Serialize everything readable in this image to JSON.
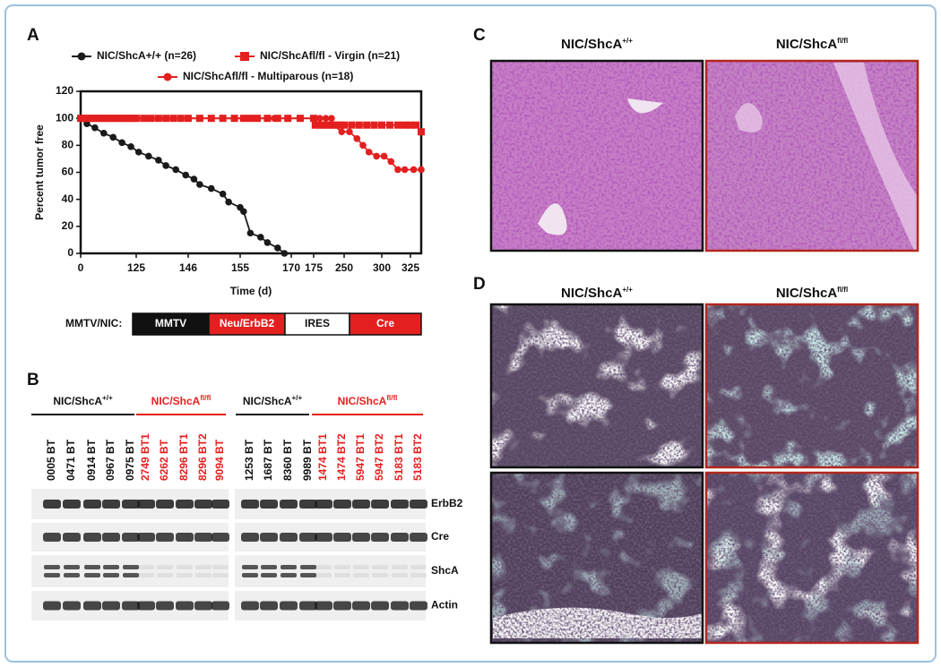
{
  "panel_labels": [
    "A",
    "B",
    "C",
    "D"
  ],
  "chart_data": {
    "type": "line",
    "y_label": "Percent tumor free",
    "x_label": "Time (d)",
    "xlim": [
      0,
      335
    ],
    "xticks": [
      0,
      125,
      146,
      155,
      170,
      175,
      250,
      300,
      325
    ],
    "ylim": [
      0,
      120
    ],
    "yticks": [
      0,
      20,
      40,
      60,
      80,
      100,
      120
    ],
    "series": [
      {
        "name": "NIC/ShcA+/+ (n=26)",
        "color": "#1a1a1a",
        "marker": "circle",
        "x": [
          0,
          14,
          32,
          52,
          73,
          93,
          113,
          126,
          130,
          134,
          137,
          141,
          145,
          147,
          148,
          150,
          152,
          153,
          155,
          156,
          158,
          161,
          163,
          166,
          168
        ],
        "values": [
          100,
          96,
          93,
          89,
          86,
          82,
          79,
          75,
          72,
          69,
          65,
          62,
          58,
          55,
          51,
          48,
          44,
          38,
          34,
          31,
          15,
          12,
          8,
          4,
          0
        ]
      },
      {
        "name": "NIC/ShcAfl/fl - Multiparous (n=18)",
        "color": "#e41f1f",
        "marker": "circle",
        "x": [
          0,
          50,
          100,
          130,
          150,
          165,
          175,
          190,
          205,
          219,
          224,
          244,
          257,
          267,
          275,
          283,
          293,
          302,
          308,
          314,
          320,
          328,
          335
        ],
        "values": [
          100,
          100,
          100,
          100,
          100,
          100,
          100,
          100,
          100,
          100,
          95,
          90,
          90,
          85,
          80,
          75,
          72,
          72,
          68,
          62,
          62,
          62,
          62
        ]
      },
      {
        "name": "NIC/ShcAfl/fl - Virgin (n=21)",
        "color": "#e41f1f",
        "marker": "square",
        "x": [
          0,
          8,
          16,
          24,
          32,
          40,
          48,
          56,
          64,
          72,
          80,
          88,
          96,
          104,
          112,
          120,
          125,
          128,
          131,
          134,
          137,
          140,
          143,
          146,
          148,
          150,
          152,
          154,
          156,
          158,
          160,
          163,
          166,
          169,
          172,
          175,
          179,
          190,
          200,
          210,
          220,
          230,
          240,
          250,
          260,
          270,
          280,
          290,
          300,
          307,
          314,
          320,
          325,
          330,
          335
        ],
        "values": [
          100,
          100,
          100,
          100,
          100,
          100,
          100,
          100,
          100,
          100,
          100,
          100,
          100,
          100,
          100,
          100,
          100,
          100,
          100,
          100,
          100,
          100,
          100,
          100,
          100,
          100,
          100,
          100,
          100,
          100,
          100,
          100,
          100,
          100,
          100,
          100,
          95,
          95,
          95,
          95,
          95,
          95,
          95,
          95,
          95,
          95,
          95,
          95,
          95,
          95,
          95,
          95,
          95,
          95,
          90
        ]
      }
    ]
  },
  "construct": {
    "label": "MMTV/NIC:",
    "elements": [
      "MMTV",
      "Neu/ErbB2",
      "IRES",
      "Cre"
    ]
  },
  "blots": {
    "proteins": [
      "ErbB2",
      "Cre",
      "ShcA",
      "Actin"
    ],
    "panels": [
      {
        "groups": [
          {
            "label": {
              "base": "NIC/ShcA",
              "sup": "+/+"
            },
            "lanes": [
              "0005 BT",
              "0471 BT",
              "0914 BT",
              "0967 BT",
              "0975 BT"
            ]
          },
          {
            "label": {
              "base": "NIC/ShcA",
              "sup": "fl/fl"
            },
            "lanes": [
              "2749 BT1",
              "6262 BT",
              "8296 BT1",
              "8296 BT2",
              "9094 BT"
            ]
          }
        ]
      },
      {
        "groups": [
          {
            "label": {
              "base": "NIC/ShcA",
              "sup": "+/+"
            },
            "lanes": [
              "1253 BT",
              "1687 BT",
              "8360 BT",
              "9989 BT"
            ]
          },
          {
            "label": {
              "base": "NIC/ShcA",
              "sup": "fl/fl"
            },
            "lanes": [
              "1474 BT1",
              "1474 BT2",
              "5947 BT1",
              "5947 BT2",
              "5183 BT1",
              "5183 BT2"
            ]
          }
        ]
      }
    ]
  },
  "histology": {
    "C": {
      "headers": [
        {
          "base": "NIC/ShcA",
          "sup": "+/+"
        },
        {
          "base": "NIC/ShcA",
          "sup": "fl/fl"
        }
      ]
    },
    "D": {
      "headers": [
        {
          "base": "NIC/ShcA",
          "sup": "+/+"
        },
        {
          "base": "NIC/ShcA",
          "sup": "fl/fl"
        }
      ]
    }
  }
}
